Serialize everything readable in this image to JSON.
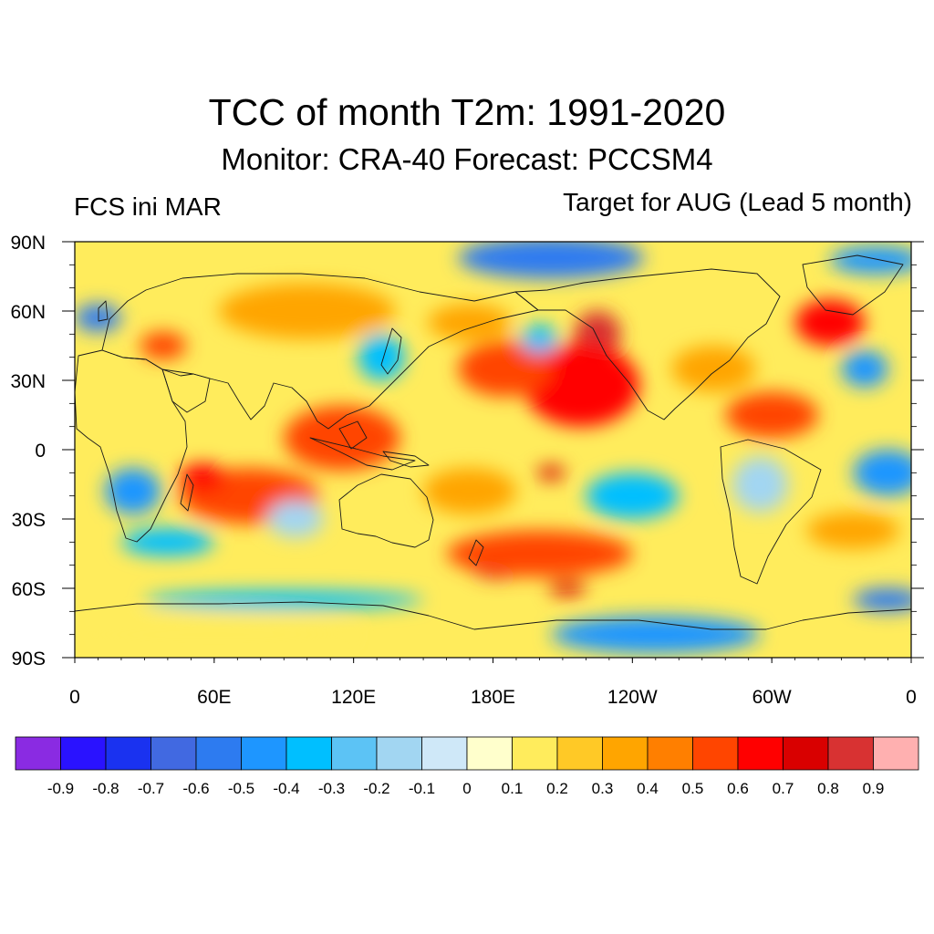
{
  "title": "TCC of month T2m: 1991-2020",
  "subtitle": "Monitor: CRA-40   Forecast: PCCSM4",
  "left_string": "FCS ini MAR",
  "right_string": "Target for AUG (Lead 5 month)",
  "map": {
    "lon_range": [
      0,
      360
    ],
    "lat_range": [
      -90,
      90
    ],
    "x_ticks": [
      {
        "lon": 0,
        "label": "0"
      },
      {
        "lon": 60,
        "label": "60E"
      },
      {
        "lon": 120,
        "label": "120E"
      },
      {
        "lon": 180,
        "label": "180E"
      },
      {
        "lon": 240,
        "label": "120W"
      },
      {
        "lon": 300,
        "label": "60W"
      },
      {
        "lon": 360,
        "label": "0"
      }
    ],
    "y_ticks": [
      {
        "lat": 90,
        "label": "90N"
      },
      {
        "lat": 60,
        "label": "60N"
      },
      {
        "lat": 30,
        "label": "30N"
      },
      {
        "lat": 0,
        "label": "0"
      },
      {
        "lat": -30,
        "label": "30S"
      },
      {
        "lat": -60,
        "label": "60S"
      },
      {
        "lat": -90,
        "label": "90S"
      }
    ],
    "regions": [
      {
        "name": "arctic-ocean-negative",
        "lon": 205,
        "lat": 83,
        "rlon": 40,
        "rlat": 9,
        "tcc": -0.6
      },
      {
        "name": "north-atlantic-north-negative",
        "lon": 345,
        "lat": 82,
        "rlon": 20,
        "rlat": 6,
        "tcc": -0.4
      },
      {
        "name": "northwest-europe-negative",
        "lon": 10,
        "lat": 57,
        "rlon": 10,
        "rlat": 6,
        "tcc": -0.6
      },
      {
        "name": "eastern-europe-positive",
        "lon": 38,
        "lat": 45,
        "rlon": 10,
        "rlat": 6,
        "tcc": 0.5
      },
      {
        "name": "siberia-positive",
        "lon": 100,
        "lat": 60,
        "rlon": 38,
        "rlat": 12,
        "tcc": 0.4
      },
      {
        "name": "east-asia-negative",
        "lon": 132,
        "lat": 40,
        "rlon": 10,
        "rlat": 10,
        "tcc": -0.3
      },
      {
        "name": "north-pacific-core",
        "lon": 225,
        "lat": 50,
        "rlon": 10,
        "rlat": 10,
        "tcc": 0.8
      },
      {
        "name": "north-pacific-east",
        "lon": 218,
        "lat": 28,
        "rlon": 25,
        "rlat": 18,
        "tcc": 0.6
      },
      {
        "name": "north-pacific-west",
        "lon": 185,
        "lat": 35,
        "rlon": 20,
        "rlat": 12,
        "tcc": 0.5
      },
      {
        "name": "north-pacific-bridge",
        "lon": 170,
        "lat": 55,
        "rlon": 18,
        "rlat": 8,
        "tcc": 0.4
      },
      {
        "name": "alaska-gulf-negative",
        "lon": 200,
        "lat": 48,
        "rlon": 8,
        "rlat": 6,
        "tcc": -0.3
      },
      {
        "name": "maritime-continent-positive",
        "lon": 115,
        "lat": 5,
        "rlon": 25,
        "rlat": 14,
        "tcc": 0.5
      },
      {
        "name": "indian-ocean-positive",
        "lon": 75,
        "lat": -20,
        "rlon": 30,
        "rlat": 12,
        "tcc": 0.5
      },
      {
        "name": "madagascar-band",
        "lon": 55,
        "lat": -12,
        "rlon": 10,
        "rlat": 6,
        "tcc": 0.6
      },
      {
        "name": "southern-africa-negative",
        "lon": 25,
        "lat": -18,
        "rlon": 12,
        "rlat": 10,
        "tcc": -0.4
      },
      {
        "name": "south-indian-negative",
        "lon": 40,
        "lat": -40,
        "rlon": 20,
        "rlat": 6,
        "tcc": -0.3
      },
      {
        "name": "south-pacific-core",
        "lon": 182,
        "lat": -50,
        "rlon": 12,
        "rlat": 6,
        "tcc": 0.8
      },
      {
        "name": "south-pacific-band",
        "lon": 200,
        "lat": -45,
        "rlon": 40,
        "rlat": 10,
        "tcc": 0.5
      },
      {
        "name": "south-pacific-spot",
        "lon": 212,
        "lat": -60,
        "rlon": 8,
        "rlat": 3,
        "tcc": 0.7
      },
      {
        "name": "central-pacific-negative",
        "lon": 240,
        "lat": -20,
        "rlon": 20,
        "rlat": 10,
        "tcc": -0.3
      },
      {
        "name": "equatorial-pacific-spot",
        "lon": 205,
        "lat": -10,
        "rlon": 6,
        "rlat": 3,
        "tcc": 0.7
      },
      {
        "name": "subtropical-pacific-positive",
        "lon": 170,
        "lat": -18,
        "rlon": 20,
        "rlat": 10,
        "tcc": 0.4
      },
      {
        "name": "west-australia-negative",
        "lon": 95,
        "lat": -30,
        "rlon": 12,
        "rlat": 8,
        "tcc": -0.2
      },
      {
        "name": "north-atlantic-positive",
        "lon": 325,
        "lat": 55,
        "rlon": 15,
        "rlat": 10,
        "tcc": 0.6
      },
      {
        "name": "mid-atlantic-negative",
        "lon": 340,
        "lat": 35,
        "rlon": 10,
        "rlat": 8,
        "tcc": -0.4
      },
      {
        "name": "caribbean-positive",
        "lon": 300,
        "lat": 15,
        "rlon": 20,
        "rlat": 10,
        "tcc": 0.5
      },
      {
        "name": "north-america-positive",
        "lon": 275,
        "lat": 35,
        "rlon": 18,
        "rlat": 10,
        "tcc": 0.3
      },
      {
        "name": "tropical-atlantic-negative",
        "lon": 350,
        "lat": -10,
        "rlon": 15,
        "rlat": 10,
        "tcc": -0.4
      },
      {
        "name": "south-atlantic-positive",
        "lon": 335,
        "lat": -35,
        "rlon": 20,
        "rlat": 8,
        "tcc": 0.4
      },
      {
        "name": "south-america-negative",
        "lon": 295,
        "lat": -15,
        "rlon": 12,
        "rlat": 12,
        "tcc": -0.2
      },
      {
        "name": "far-south-atlantic-negative",
        "lon": 350,
        "lat": -65,
        "rlon": 15,
        "rlat": 5,
        "tcc": -0.6
      },
      {
        "name": "west-antarctic-negative",
        "lon": 250,
        "lat": -80,
        "rlon": 45,
        "rlat": 8,
        "tcc": -0.4
      },
      {
        "name": "east-antarctic-positive",
        "lon": 60,
        "lat": -80,
        "rlon": 60,
        "rlat": 8,
        "tcc": 0.2
      },
      {
        "name": "southern-ocean-negative",
        "lon": 90,
        "lat": -65,
        "rlon": 60,
        "rlat": 4,
        "tcc": -0.3
      }
    ]
  },
  "colorbar": {
    "colors": [
      "#8a2be2",
      "#2a12ff",
      "#1a32f0",
      "#4169e1",
      "#2d7bf0",
      "#1e96ff",
      "#00bfff",
      "#5cc3f5",
      "#a2d6f2",
      "#cfe8f8",
      "#ffffcc",
      "#ffec5c",
      "#ffc926",
      "#ffa500",
      "#ff7f00",
      "#ff4500",
      "#ff0000",
      "#d90000",
      "#d83232",
      "#ffb0b0"
    ],
    "labels": [
      "-0.9",
      "-0.8",
      "-0.7",
      "-0.6",
      "-0.5",
      "-0.4",
      "-0.3",
      "-0.2",
      "-0.1",
      "0",
      "0.1",
      "0.2",
      "0.3",
      "0.4",
      "0.5",
      "0.6",
      "0.7",
      "0.8",
      "0.9"
    ]
  }
}
